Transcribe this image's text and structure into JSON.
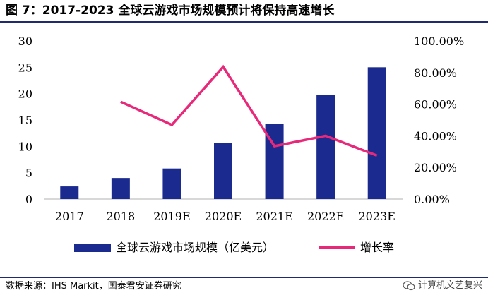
{
  "title": "图 7：2017-2023 全球云游戏市场规模预计将保持高速增长",
  "source": "数据来源：IHS Markit，国泰君安证券研究",
  "watermark": "计算机文艺复兴",
  "colors": {
    "bar": "#1a2a8f",
    "line": "#e8297a",
    "rule": "#1f2b6e"
  },
  "chart_data": {
    "type": "bar",
    "categories": [
      "2017",
      "2018",
      "2019E",
      "2020E",
      "2021E",
      "2022E",
      "2023E"
    ],
    "series": [
      {
        "name": "全球云游戏市场规模（亿美元）",
        "type": "bar",
        "axis": "left",
        "values": [
          2.4,
          4.0,
          5.8,
          10.6,
          14.2,
          19.8,
          25.0
        ]
      },
      {
        "name": "增长率",
        "type": "line",
        "axis": "right",
        "values": [
          null,
          61.5,
          46.9,
          83.6,
          33.5,
          40.0,
          27.5
        ]
      }
    ],
    "y_left": {
      "ylim": [
        0,
        30
      ],
      "ticks": [
        "0",
        "5",
        "10",
        "15",
        "20",
        "25",
        "30"
      ]
    },
    "y_right": {
      "ylim": [
        0,
        100
      ],
      "ticks": [
        "0.00%",
        "20.00%",
        "40.00%",
        "60.00%",
        "80.00%",
        "100.00%"
      ]
    },
    "grid": false,
    "legend_position": "bottom"
  }
}
